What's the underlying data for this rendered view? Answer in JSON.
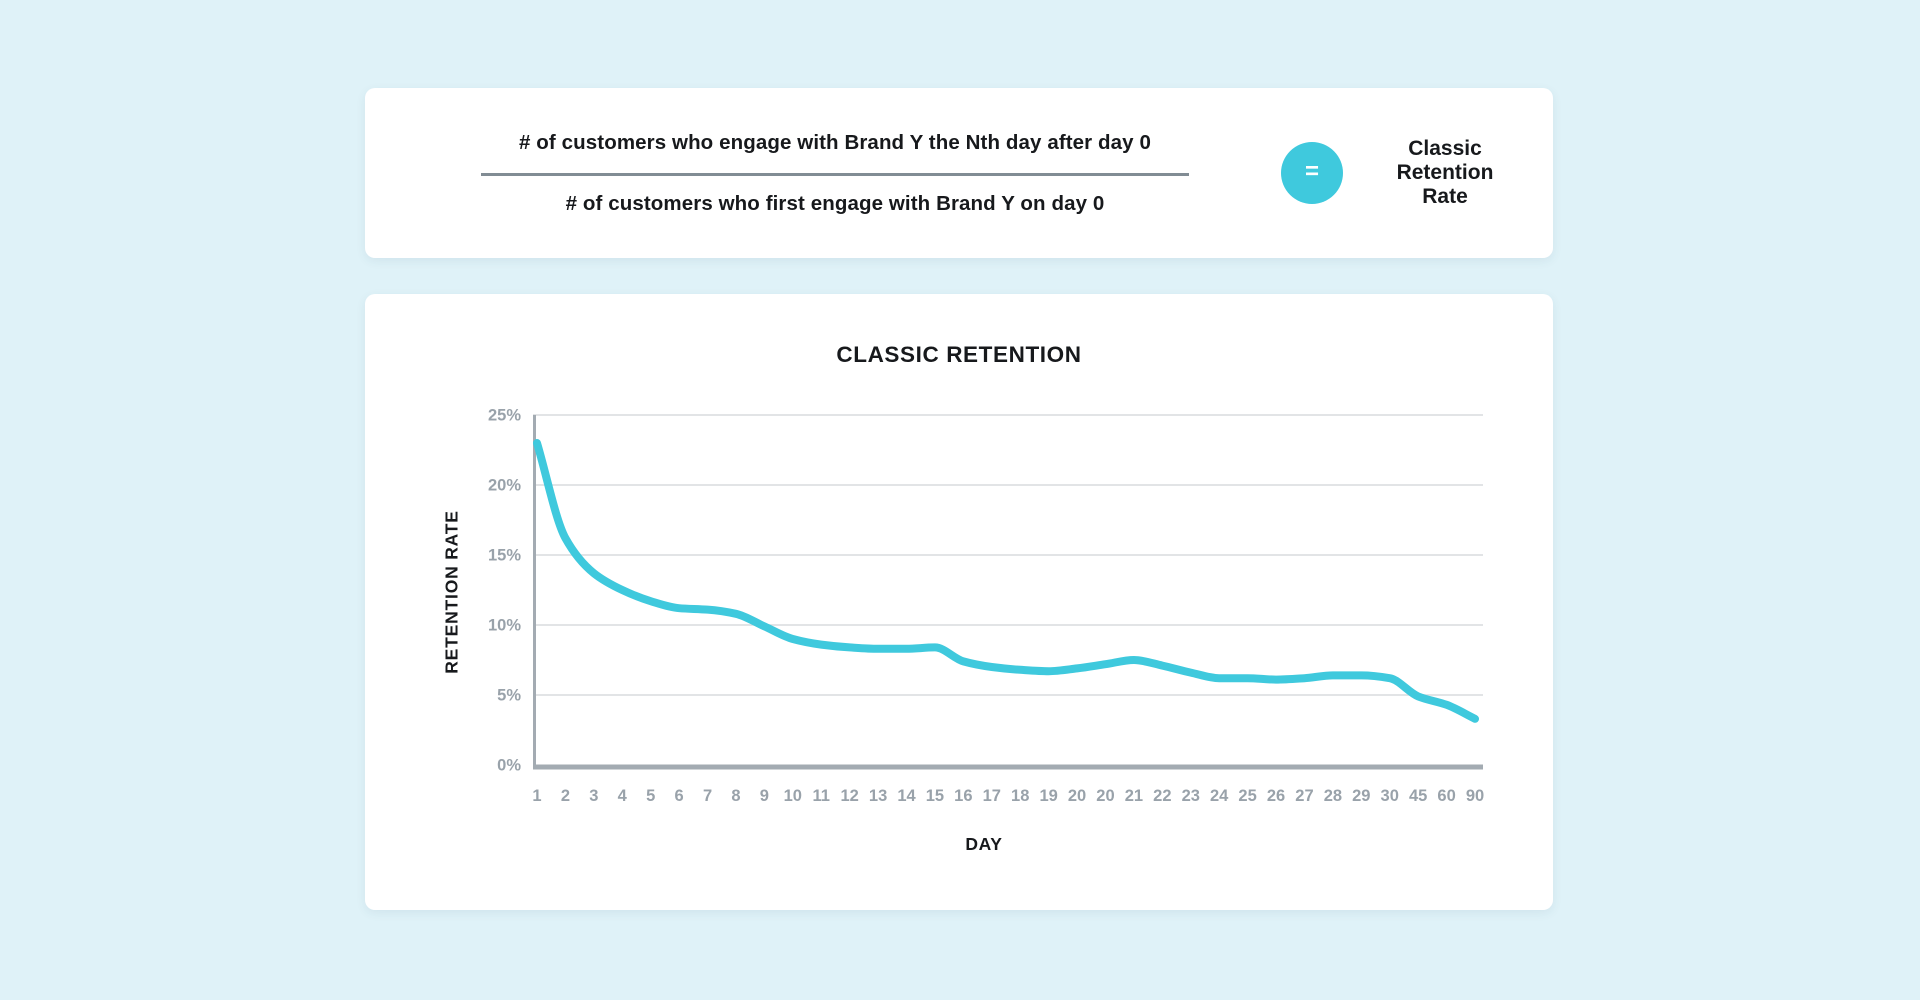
{
  "page": {
    "background_color": "#dff2f8",
    "card_color": "#ffffff",
    "text_color": "#17191c"
  },
  "formula_card": {
    "numerator": "# of customers who engage with Brand Y the Nth day after day 0",
    "denominator": "# of customers who first engage with Brand Y on day 0",
    "equals": "=",
    "result": "Classic Retention Rate",
    "accent_color": "#3fc9dd",
    "divider_color": "#818c94"
  },
  "chart_data": {
    "type": "line",
    "title": "CLASSIC RETENTION",
    "xlabel": "DAY",
    "ylabel": "RETENTION RATE",
    "categories": [
      "1",
      "2",
      "3",
      "4",
      "5",
      "6",
      "7",
      "8",
      "9",
      "10",
      "11",
      "12",
      "13",
      "14",
      "15",
      "16",
      "17",
      "18",
      "19",
      "20",
      "20",
      "21",
      "22",
      "23",
      "24",
      "25",
      "26",
      "27",
      "28",
      "29",
      "30",
      "45",
      "60",
      "90"
    ],
    "values": [
      23.0,
      16.2,
      13.7,
      12.5,
      11.7,
      11.2,
      11.1,
      10.8,
      9.9,
      9.0,
      8.6,
      8.4,
      8.3,
      8.3,
      8.4,
      7.4,
      7.0,
      6.8,
      6.7,
      6.9,
      7.2,
      7.5,
      7.1,
      6.6,
      6.2,
      6.2,
      6.1,
      6.2,
      6.4,
      6.4,
      6.2,
      4.9,
      4.3,
      3.3
    ],
    "ylim": [
      0,
      25
    ],
    "ytick_values": [
      0,
      5,
      10,
      15,
      20,
      25
    ],
    "ytick_labels": [
      "0%",
      "5%",
      "10%",
      "15%",
      "20%",
      "25%"
    ],
    "grid": "horizontal",
    "legend": "none",
    "line_color": "#3fc9dd",
    "axis_color": "#a3abb2",
    "gridline_color": "#d9dcde",
    "tick_label_color": "#99a2aa"
  }
}
